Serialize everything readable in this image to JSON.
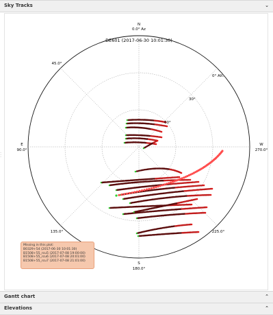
{
  "panels": {
    "sky_tracks": {
      "label": "Sky Tracks",
      "chevron": "chevron-down-icon"
    },
    "gantt_chart": {
      "label": "Gantt chart",
      "chevron": "chevron-up-icon"
    },
    "elevations": {
      "label": "Elevations",
      "chevron": "chevron-up-icon"
    }
  },
  "plot": {
    "title": "DE601 (2017-06-30 10:01:30)",
    "north": {
      "dir": "N",
      "az": "0.0° Az"
    },
    "east": {
      "dir": "E",
      "az": "90.0°"
    },
    "west": {
      "dir": "W",
      "az": "270.0°"
    },
    "south": {
      "dir": "S",
      "az": "180.0°"
    },
    "diag_45": "45.0°",
    "diag_135": "135.0°",
    "diag_225": "225.0°",
    "alt_0": "0° Alt.",
    "alt_30": "30°",
    "alt_60": "60°"
  },
  "missing": {
    "header": "Missing in this plot:",
    "items": [
      "B0329+54 (2017-06-30 10:01:30)",
      "B1508+55_rcu5 (2017-07-08 19:00:00)",
      "B1508+55_rcu6 (2017-07-08 20:01:00)",
      "B1508+55_rcu7 (2017-07-08 21:01:00)"
    ]
  },
  "colors": {
    "track": "#5a0c0c",
    "start": "#2fd12f",
    "end": "#e01818",
    "highlight": "#ff4d4d",
    "box": "#f6c8ad"
  }
}
